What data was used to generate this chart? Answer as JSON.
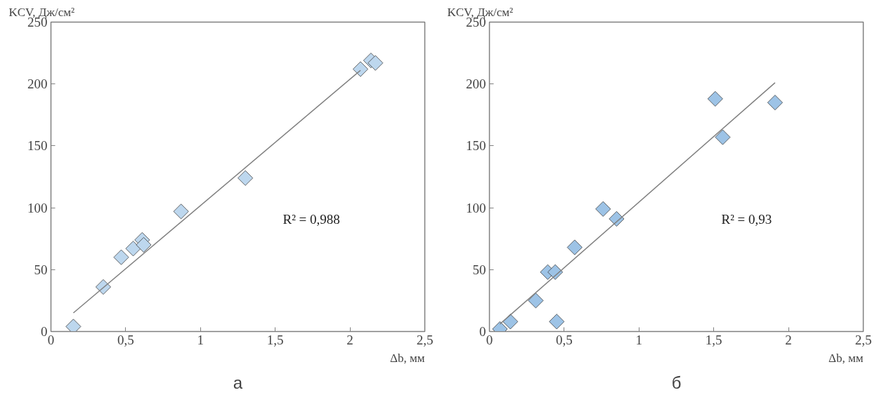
{
  "chart_data": [
    {
      "type": "scatter",
      "ylabel": "KCV, Дж/см²",
      "xlabel": "Δb, мм",
      "marker": "diamond",
      "grid": false,
      "xlim": [
        0,
        2.5
      ],
      "ylim": [
        0,
        250
      ],
      "xticks": [
        0,
        {
          "value": 0.5,
          "label": "0,5"
        },
        1,
        {
          "value": 1.5,
          "label": "1,5"
        },
        2,
        {
          "value": 2.5,
          "label": "2,5"
        }
      ],
      "yticks": [
        0,
        50,
        100,
        150,
        200,
        250
      ],
      "series": [
        {
          "color": "#bdd7ee",
          "x": [
            0.15,
            0.35,
            0.47,
            0.55,
            0.61,
            0.62,
            0.87,
            1.3,
            2.07,
            2.14,
            2.17
          ],
          "values": [
            4,
            36,
            60,
            67,
            74,
            70,
            97,
            124,
            212,
            219,
            217
          ]
        },
        {
          "type": "line",
          "marker": "none",
          "color": "#808080",
          "x": [
            0.15,
            2.07
          ],
          "values": [
            15,
            211
          ]
        }
      ],
      "annotations": [
        "R² = 0,988",
        "а"
      ]
    },
    {
      "type": "scatter",
      "ylabel": "KCV, Дж/см²",
      "xlabel": "Δb, мм",
      "marker": "diamond",
      "grid": false,
      "xlim": [
        0,
        2.5
      ],
      "ylim": [
        0,
        250
      ],
      "xticks": [
        0,
        {
          "value": 0.5,
          "label": "0,5"
        },
        1,
        {
          "value": 1.5,
          "label": "1,5"
        },
        2,
        {
          "value": 2.5,
          "label": "2,5"
        }
      ],
      "yticks": [
        0,
        50,
        100,
        150,
        200,
        250
      ],
      "series": [
        {
          "color": "#9dc3e6",
          "x": [
            0.07,
            0.14,
            0.31,
            0.39,
            0.44,
            0.45,
            0.57,
            0.76,
            0.85,
            1.51,
            1.56,
            1.91
          ],
          "values": [
            2,
            8,
            25,
            48,
            48,
            8,
            68,
            99,
            91,
            188,
            157,
            185
          ]
        },
        {
          "type": "line",
          "marker": "none",
          "color": "#808080",
          "x": [
            0.07,
            1.91
          ],
          "values": [
            6,
            201
          ]
        }
      ],
      "annotations": [
        "R² = 0,93",
        "б"
      ]
    }
  ]
}
